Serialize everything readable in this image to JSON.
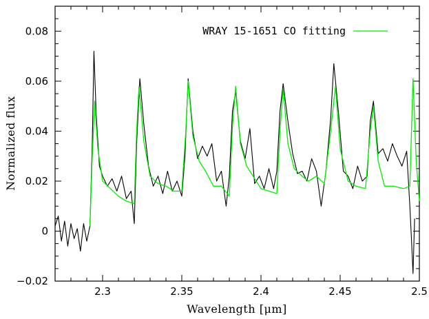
{
  "chart_data": {
    "type": "line",
    "title": "",
    "xlabel": "Wavelength [μm]",
    "ylabel": "Normalized flux",
    "xlim": [
      2.27,
      2.5
    ],
    "ylim": [
      -0.02,
      0.09
    ],
    "x_ticks": [
      2.3,
      2.35,
      2.4,
      2.45,
      2.5
    ],
    "x_tick_labels": [
      "2.3",
      "2.35",
      "2.4",
      "2.45",
      "2.5"
    ],
    "y_ticks": [
      -0.02,
      0,
      0.02,
      0.04,
      0.06,
      0.08
    ],
    "y_tick_labels": [
      "−0.02",
      "0",
      "0.02",
      "0.04",
      "0.06",
      "0.08"
    ],
    "grid": false,
    "legend_position": "top-right",
    "series": [
      {
        "label": "",
        "color": "#000000",
        "points": [
          [
            2.27,
            0.002
          ],
          [
            2.272,
            0.006
          ],
          [
            2.274,
            -0.004
          ],
          [
            2.276,
            0.004
          ],
          [
            2.278,
            -0.006
          ],
          [
            2.28,
            0.003
          ],
          [
            2.282,
            -0.003
          ],
          [
            2.284,
            0.001
          ],
          [
            2.286,
            -0.008
          ],
          [
            2.288,
            0.003
          ],
          [
            2.29,
            -0.004
          ],
          [
            2.292,
            0.002
          ],
          [
            2.2935,
            0.035
          ],
          [
            2.2945,
            0.072
          ],
          [
            2.296,
            0.046
          ],
          [
            2.298,
            0.026
          ],
          [
            2.3,
            0.022
          ],
          [
            2.303,
            0.018
          ],
          [
            2.306,
            0.021
          ],
          [
            2.309,
            0.016
          ],
          [
            2.312,
            0.022
          ],
          [
            2.315,
            0.013
          ],
          [
            2.318,
            0.016
          ],
          [
            2.32,
            0.003
          ],
          [
            2.3215,
            0.035
          ],
          [
            2.3235,
            0.061
          ],
          [
            2.326,
            0.043
          ],
          [
            2.329,
            0.026
          ],
          [
            2.332,
            0.018
          ],
          [
            2.335,
            0.022
          ],
          [
            2.338,
            0.015
          ],
          [
            2.341,
            0.024
          ],
          [
            2.344,
            0.016
          ],
          [
            2.347,
            0.02
          ],
          [
            2.35,
            0.014
          ],
          [
            2.352,
            0.03
          ],
          [
            2.354,
            0.061
          ],
          [
            2.357,
            0.04
          ],
          [
            2.36,
            0.029
          ],
          [
            2.363,
            0.034
          ],
          [
            2.366,
            0.03
          ],
          [
            2.369,
            0.035
          ],
          [
            2.372,
            0.02
          ],
          [
            2.375,
            0.024
          ],
          [
            2.378,
            0.01
          ],
          [
            2.38,
            0.022
          ],
          [
            2.382,
            0.048
          ],
          [
            2.384,
            0.056
          ],
          [
            2.387,
            0.036
          ],
          [
            2.39,
            0.029
          ],
          [
            2.393,
            0.041
          ],
          [
            2.396,
            0.019
          ],
          [
            2.399,
            0.022
          ],
          [
            2.402,
            0.017
          ],
          [
            2.405,
            0.025
          ],
          [
            2.408,
            0.017
          ],
          [
            2.41,
            0.024
          ],
          [
            2.412,
            0.048
          ],
          [
            2.414,
            0.059
          ],
          [
            2.417,
            0.044
          ],
          [
            2.42,
            0.031
          ],
          [
            2.423,
            0.023
          ],
          [
            2.426,
            0.024
          ],
          [
            2.429,
            0.02
          ],
          [
            2.432,
            0.029
          ],
          [
            2.435,
            0.024
          ],
          [
            2.438,
            0.01
          ],
          [
            2.441,
            0.024
          ],
          [
            2.444,
            0.045
          ],
          [
            2.446,
            0.067
          ],
          [
            2.449,
            0.047
          ],
          [
            2.452,
            0.024
          ],
          [
            2.455,
            0.022
          ],
          [
            2.458,
            0.017
          ],
          [
            2.461,
            0.026
          ],
          [
            2.464,
            0.02
          ],
          [
            2.467,
            0.022
          ],
          [
            2.469,
            0.044
          ],
          [
            2.471,
            0.052
          ],
          [
            2.474,
            0.031
          ],
          [
            2.477,
            0.033
          ],
          [
            2.48,
            0.028
          ],
          [
            2.483,
            0.035
          ],
          [
            2.486,
            0.03
          ],
          [
            2.489,
            0.026
          ],
          [
            2.492,
            0.032
          ],
          [
            2.494,
            0.01
          ],
          [
            2.495,
            -0.003
          ],
          [
            2.496,
            -0.017
          ],
          [
            2.497,
            0.005
          ]
        ]
      },
      {
        "label": "WRAY 15-1651 CO fitting",
        "color": "#00ee00",
        "points": [
          [
            2.292,
            0.002
          ],
          [
            2.2935,
            0.03
          ],
          [
            2.295,
            0.052
          ],
          [
            2.297,
            0.033
          ],
          [
            2.3,
            0.02
          ],
          [
            2.305,
            0.017
          ],
          [
            2.31,
            0.014
          ],
          [
            2.315,
            0.012
          ],
          [
            2.32,
            0.011
          ],
          [
            2.3215,
            0.04
          ],
          [
            2.323,
            0.058
          ],
          [
            2.326,
            0.036
          ],
          [
            2.33,
            0.022
          ],
          [
            2.335,
            0.019
          ],
          [
            2.34,
            0.018
          ],
          [
            2.345,
            0.016
          ],
          [
            2.35,
            0.016
          ],
          [
            2.3525,
            0.04
          ],
          [
            2.354,
            0.06
          ],
          [
            2.357,
            0.038
          ],
          [
            2.361,
            0.028
          ],
          [
            2.365,
            0.024
          ],
          [
            2.37,
            0.018
          ],
          [
            2.375,
            0.018
          ],
          [
            2.38,
            0.014
          ],
          [
            2.382,
            0.042
          ],
          [
            2.384,
            0.058
          ],
          [
            2.387,
            0.035
          ],
          [
            2.391,
            0.026
          ],
          [
            2.395,
            0.022
          ],
          [
            2.4,
            0.017
          ],
          [
            2.405,
            0.016
          ],
          [
            2.41,
            0.015
          ],
          [
            2.412,
            0.04
          ],
          [
            2.414,
            0.057
          ],
          [
            2.417,
            0.035
          ],
          [
            2.421,
            0.025
          ],
          [
            2.426,
            0.022
          ],
          [
            2.43,
            0.02
          ],
          [
            2.435,
            0.022
          ],
          [
            2.44,
            0.019
          ],
          [
            2.444,
            0.04
          ],
          [
            2.447,
            0.058
          ],
          [
            2.45,
            0.033
          ],
          [
            2.455,
            0.02
          ],
          [
            2.46,
            0.018
          ],
          [
            2.466,
            0.017
          ],
          [
            2.469,
            0.04
          ],
          [
            2.471,
            0.05
          ],
          [
            2.474,
            0.028
          ],
          [
            2.478,
            0.018
          ],
          [
            2.484,
            0.018
          ],
          [
            2.49,
            0.017
          ],
          [
            2.494,
            0.018
          ],
          [
            2.496,
            0.061
          ],
          [
            2.498,
            0.028
          ],
          [
            2.5,
            0.012
          ]
        ]
      }
    ]
  }
}
